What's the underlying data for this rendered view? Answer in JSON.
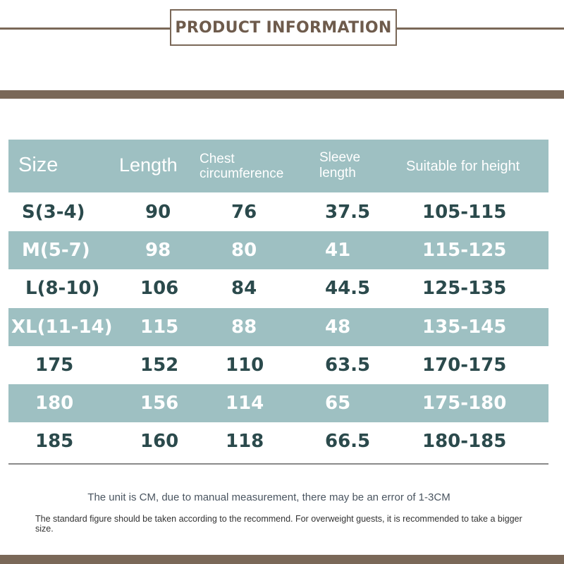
{
  "title": "PRODUCT INFORMATION",
  "colors": {
    "accent_brown": "#7a6858",
    "row_teal": "#9ec0c2",
    "text_dark": "#2b4a4c"
  },
  "table": {
    "headers": [
      "Size",
      "Length",
      "Chest circumference",
      "Sleeve length",
      "Suitable for height"
    ],
    "rows": [
      [
        "S(3-4)",
        "90",
        "76",
        "37.5",
        "105-115"
      ],
      [
        "M(5-7)",
        "98",
        "80",
        "41",
        "115-125"
      ],
      [
        "L(8-10)",
        "106",
        "84",
        "44.5",
        "125-135"
      ],
      [
        "XL(11-14)",
        "115",
        "88",
        "48",
        "135-145"
      ],
      [
        "175",
        "152",
        "110",
        "63.5",
        "170-175"
      ],
      [
        "180",
        "156",
        "114",
        "65",
        "175-180"
      ],
      [
        "185",
        "160",
        "118",
        "66.5",
        "180-185"
      ]
    ]
  },
  "notes": {
    "unit": "The unit is CM, due to manual measurement, there may be an error of 1-3CM",
    "recommendation": "The standard figure should be taken according to the recommend. For overweight guests, it is recommended to take a bigger size."
  }
}
